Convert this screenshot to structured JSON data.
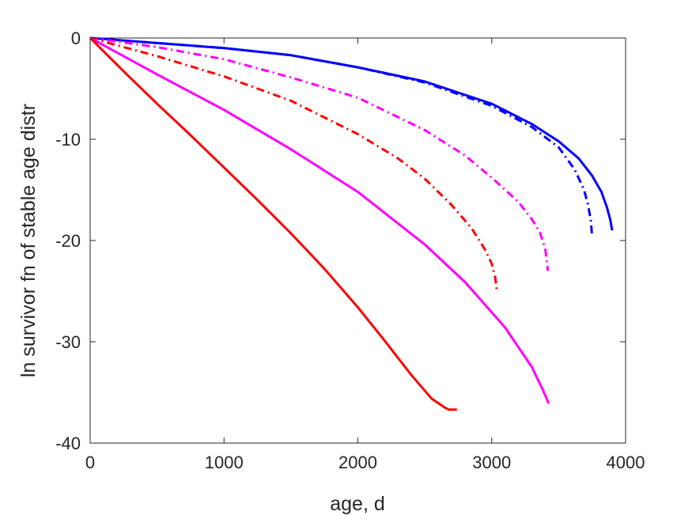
{
  "chart_data": {
    "type": "line",
    "title": "",
    "xlabel": "age, d",
    "ylabel": "ln survivor fn of stable age distr",
    "xlim": [
      0,
      4000
    ],
    "ylim": [
      -40,
      0
    ],
    "xticks": [
      0,
      1000,
      2000,
      3000,
      4000
    ],
    "yticks": [
      0,
      -10,
      -20,
      -30,
      -40
    ],
    "xtick_labels": [
      "0",
      "1000",
      "2000",
      "3000",
      "4000"
    ],
    "ytick_labels": [
      "0",
      "-10",
      "-20",
      "-30",
      "-40"
    ],
    "grid": false,
    "legend": "none",
    "series": [
      {
        "color": "#0000ff",
        "style": "solid",
        "x": [
          0,
          500,
          1000,
          1500,
          2000,
          2500,
          3000,
          3300,
          3500,
          3650,
          3750,
          3820,
          3860,
          3885,
          3900
        ],
        "y": [
          0,
          -0.5,
          -1.0,
          -1.7,
          -2.9,
          -4.3,
          -6.5,
          -8.5,
          -10.2,
          -11.9,
          -13.6,
          -15.2,
          -16.7,
          -17.9,
          -19.0
        ]
      },
      {
        "color": "#0000ff",
        "style": "dashdot",
        "x": [
          0,
          500,
          1000,
          1500,
          2000,
          2500,
          3000,
          3300,
          3500,
          3620,
          3690,
          3720,
          3740,
          3750
        ],
        "y": [
          0,
          -0.5,
          -1.0,
          -1.7,
          -2.9,
          -4.4,
          -6.7,
          -8.8,
          -10.8,
          -13.0,
          -15.0,
          -16.5,
          -18.0,
          -19.6
        ]
      },
      {
        "color": "#ff00ff",
        "style": "dashdot",
        "x": [
          0,
          500,
          1000,
          1500,
          2000,
          2500,
          2800,
          3000,
          3200,
          3300,
          3360,
          3400,
          3420
        ],
        "y": [
          0,
          -0.9,
          -2.1,
          -3.9,
          -5.9,
          -9.1,
          -11.6,
          -13.8,
          -16.2,
          -17.9,
          -19.2,
          -20.8,
          -23.0
        ]
      },
      {
        "color": "#ff0000",
        "style": "dashdot",
        "x": [
          0,
          500,
          1000,
          1500,
          2000,
          2300,
          2500,
          2700,
          2850,
          2950,
          3000,
          3025,
          3040
        ],
        "y": [
          0,
          -1.8,
          -3.8,
          -6.2,
          -9.5,
          -11.9,
          -13.9,
          -16.5,
          -18.8,
          -20.9,
          -22.3,
          -23.6,
          -25.0
        ]
      },
      {
        "color": "#ff00ff",
        "style": "solid",
        "x": [
          0,
          500,
          1000,
          1500,
          2000,
          2500,
          2800,
          3100,
          3300,
          3380,
          3410,
          3425
        ],
        "y": [
          0,
          -3.6,
          -7.1,
          -11.0,
          -15.2,
          -20.4,
          -24.1,
          -28.6,
          -32.5,
          -34.7,
          -35.6,
          -36.1
        ]
      },
      {
        "color": "#ff0000",
        "style": "solid",
        "x": [
          0,
          250,
          500,
          750,
          1000,
          1250,
          1500,
          1750,
          2000,
          2200,
          2400,
          2550,
          2650,
          2680,
          2700,
          2740
        ],
        "y": [
          0,
          -3.3,
          -6.5,
          -9.6,
          -12.8,
          -16.0,
          -19.3,
          -22.8,
          -26.6,
          -29.9,
          -33.3,
          -35.6,
          -36.5,
          -36.7,
          -36.7,
          -36.7
        ]
      }
    ]
  }
}
